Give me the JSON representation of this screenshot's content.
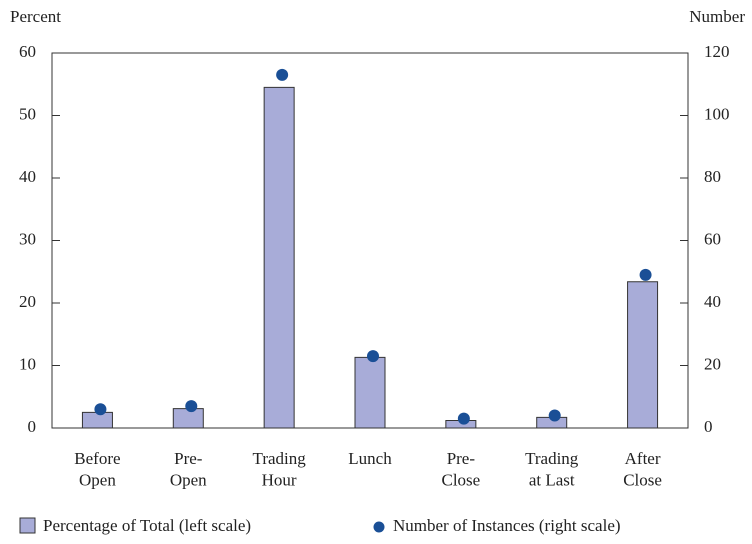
{
  "chart_data": {
    "type": "bar-dot",
    "y_label": "Percent",
    "y2_label": "Number",
    "categories": [
      "Before\nOpen",
      "Pre-\nOpen",
      "Trading\nHour",
      "Lunch",
      "Pre-\nClose",
      "Trading\nat Last",
      "After\nClose"
    ],
    "series": [
      {
        "name": "Percentage of Total (left scale)",
        "color": "#a8acd8",
        "values": [
          2.5,
          3.1,
          54.5,
          11.3,
          1.2,
          1.7,
          23.4
        ]
      },
      {
        "name": "Number of Instances (right scale)",
        "color": "#1a4f96",
        "axis": "y2",
        "values": [
          6,
          7,
          113,
          23,
          3,
          4,
          49
        ]
      }
    ],
    "ylim": [
      0,
      60
    ],
    "yticks": [
      0,
      10,
      20,
      30,
      40,
      50,
      60
    ],
    "y2lim": [
      0,
      120
    ],
    "y2ticks": [
      0,
      20,
      40,
      60,
      80,
      100,
      120
    ]
  }
}
